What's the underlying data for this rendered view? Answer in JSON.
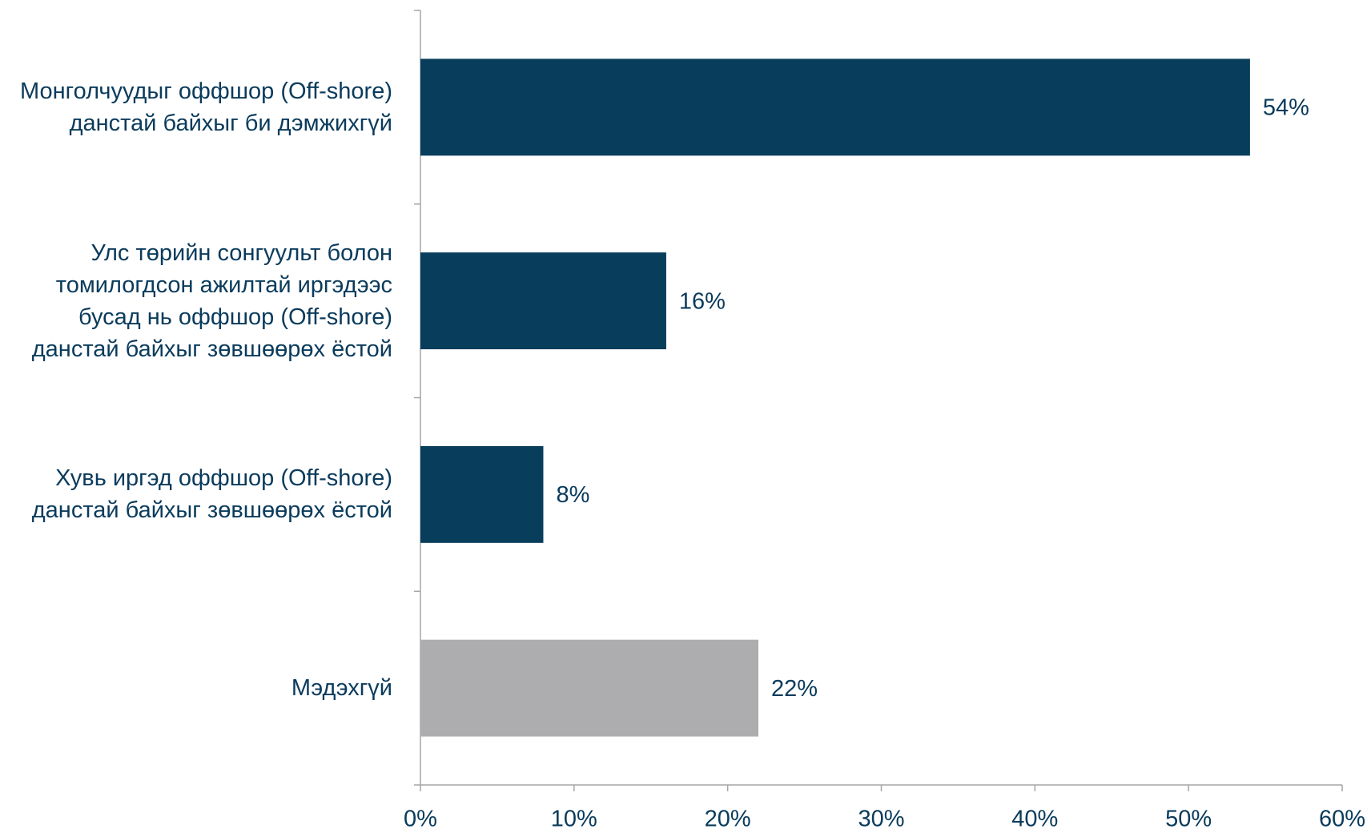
{
  "chart_data": {
    "type": "bar",
    "orientation": "horizontal",
    "categories": [
      "Монголчуудыг оффшор (Off-shore) данстай байхыг би дэмжихгүй",
      "Улс төрийн сонгуульт болон томилогдсон ажилтай иргэдээс бусад нь оффшор (Off-shore) данстай байхыг зөвшөөрөх ёстой",
      "Хувь иргэд оффшор (Off-shore) данстай байхыг зөвшөөрөх ёстой",
      "Мэдэхгүй"
    ],
    "values": [
      54,
      16,
      8,
      22
    ],
    "value_labels": [
      "54%",
      "16%",
      "8%",
      "22%"
    ],
    "colors": [
      "#083d5c",
      "#083d5c",
      "#083d5c",
      "#adadaf"
    ],
    "xlim": [
      0,
      60
    ],
    "xticks": [
      {
        "value": 0,
        "label": "0%"
      },
      {
        "value": 10,
        "label": "10%"
      },
      {
        "value": 20,
        "label": "20%"
      },
      {
        "value": 30,
        "label": "30%"
      },
      {
        "value": 40,
        "label": "40%"
      },
      {
        "value": 50,
        "label": "50%"
      },
      {
        "value": 60,
        "label": "60%"
      }
    ],
    "grid": false
  }
}
